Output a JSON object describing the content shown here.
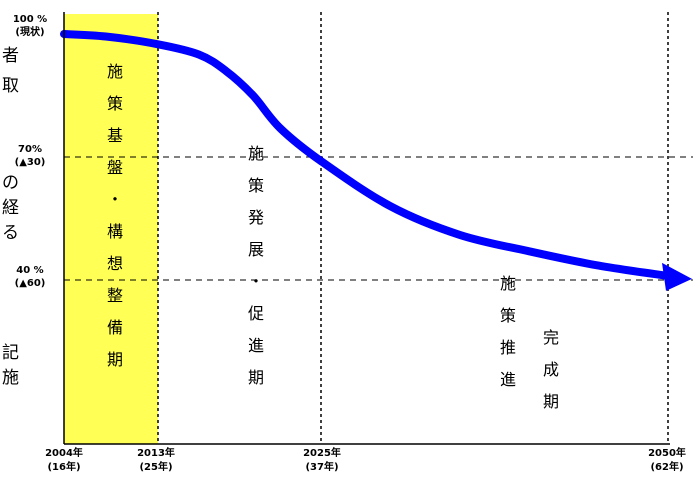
{
  "chart_data": {
    "type": "line",
    "y_ticks": [
      {
        "value": 100,
        "line1": "100 %",
        "line2": "(現状)"
      },
      {
        "value": 70,
        "line1": "70%",
        "line2": "(▲30)"
      },
      {
        "value": 40,
        "line1": "40 %",
        "line2": "(▲60)"
      }
    ],
    "x_ticks": [
      {
        "year": 2004,
        "line1": "2004年",
        "line2": "(16年)"
      },
      {
        "year": 2013,
        "line1": "2013年",
        "line2": "(25年)"
      },
      {
        "year": 2025,
        "line1": "2025年",
        "line2": "(37年)"
      },
      {
        "year": 2050,
        "line1": "2050年",
        "line2": "(62年)"
      }
    ],
    "series": [
      {
        "x": [
          2004,
          2008,
          2013,
          2016,
          2018,
          2020,
          2022,
          2025,
          2030,
          2035,
          2040,
          2045,
          2050
        ],
        "y": [
          100,
          99.4,
          97.5,
          95,
          91,
          85,
          77,
          69,
          58,
          51,
          47,
          43.5,
          41
        ],
        "color": "#0000ff"
      }
    ],
    "phases": [
      {
        "text": "施策基盤・構想整備期",
        "highlight_color": "#ffff55"
      },
      {
        "text": "施策発展・促進期"
      },
      {
        "text": "施策推進"
      },
      {
        "text": "完成期"
      }
    ]
  },
  "cut_text_fragments": [
    "者",
    "取",
    "の",
    "経",
    "る",
    "記",
    "施"
  ]
}
